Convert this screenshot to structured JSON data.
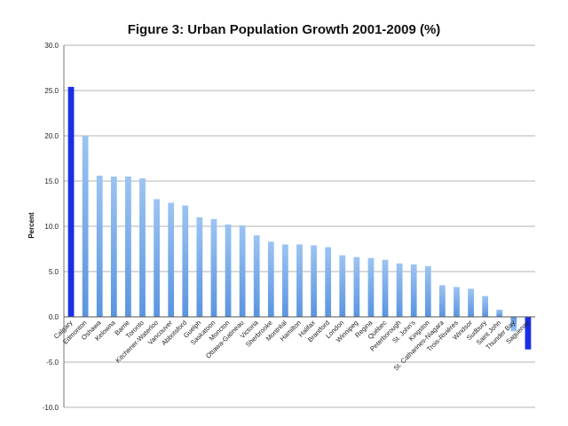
{
  "chart_data": {
    "type": "bar",
    "title": "Figure 3: Urban Population Growth 2001-2009 (%)",
    "xlabel": "",
    "ylabel": "Percent",
    "ylim": [
      -10,
      30
    ],
    "yticks": [
      "30.0",
      "25.0",
      "20.0",
      "15.0",
      "10.0",
      "5.0",
      "0.0",
      "-5.0",
      "-10.0"
    ],
    "grid": true,
    "categories": [
      "Calgary",
      "Edmonton",
      "Oshawa",
      "Kelowna",
      "Barrie",
      "Toronto",
      "Kitchener-Waterloo",
      "Vancouver",
      "Abbotsford",
      "Guelph",
      "Saskatoon",
      "Moncton",
      "Ottawa-Gatineau",
      "Victoria",
      "Sherbrooke",
      "Montréal",
      "Hamilton",
      "Halifax",
      "Brantford",
      "London",
      "Winnipeg",
      "Regina",
      "Québec",
      "Peterborough",
      "St. John's",
      "Kingston",
      "St. Catharines-Niagara",
      "Trois-Rivières",
      "Windsor",
      "Sudbury",
      "Saint John",
      "Thunder Bay",
      "Saguenay"
    ],
    "values": [
      25.4,
      20.0,
      15.6,
      15.5,
      15.5,
      15.3,
      13.0,
      12.6,
      12.3,
      11.0,
      10.8,
      10.2,
      10.1,
      9.0,
      8.3,
      8.0,
      8.0,
      7.9,
      7.7,
      6.8,
      6.6,
      6.5,
      6.3,
      5.9,
      5.8,
      5.6,
      3.5,
      3.3,
      3.1,
      2.3,
      0.8,
      -1.6,
      -3.6
    ],
    "colors": {
      "highlight": "#1a2ee6",
      "gradient_top": "#9cc4f2",
      "gradient_bottom": "#5a94e0",
      "grid": "#9a9a9a",
      "axis": "#555555"
    },
    "highlight_indices": [
      0,
      32
    ]
  }
}
